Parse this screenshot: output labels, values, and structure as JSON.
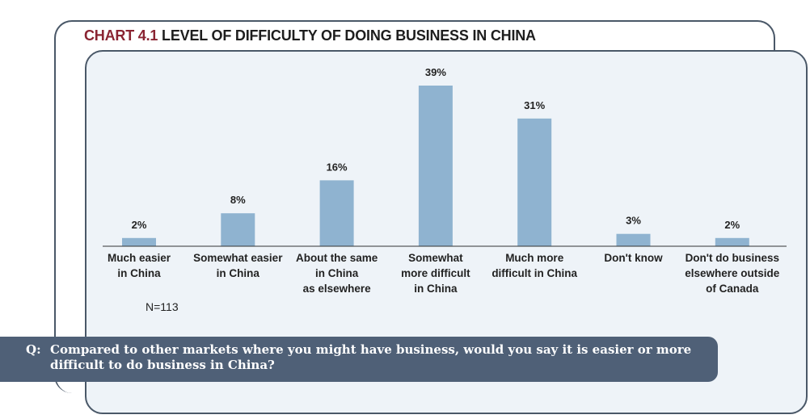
{
  "title": {
    "prefix": "CHART 4.1",
    "text": "LEVEL OF DIFFICULTY OF DOING BUSINESS IN CHINA"
  },
  "note": "N=113",
  "question": {
    "label": "Q:",
    "text": "Compared to other markets where you might have business, would you say it is easier or more difficult to do business in China?"
  },
  "colors": {
    "bar": "#8fb3d0",
    "title_accent": "#8a2432",
    "question_bg": "#4f6077",
    "panel_bg": "#eef3f8"
  },
  "chart_data": {
    "type": "bar",
    "title": "CHART 4.1 LEVEL OF DIFFICULTY OF DOING BUSINESS IN CHINA",
    "categories": [
      [
        "Much easier",
        "in China"
      ],
      [
        "Somewhat easier",
        "in China"
      ],
      [
        "About the same",
        "in China",
        "as elsewhere"
      ],
      [
        "Somewhat",
        "more difficult",
        "in China"
      ],
      [
        "Much more",
        "difficult in China"
      ],
      [
        "Don't know"
      ],
      [
        "Don't do business",
        "elsewhere outside",
        "of Canada"
      ]
    ],
    "values": [
      2,
      8,
      16,
      39,
      31,
      3,
      2
    ],
    "value_labels": [
      "2%",
      "8%",
      "16%",
      "39%",
      "31%",
      "3%",
      "2%"
    ],
    "unit": "%",
    "ylim": [
      0,
      39
    ],
    "grid": false,
    "legend": "none"
  }
}
